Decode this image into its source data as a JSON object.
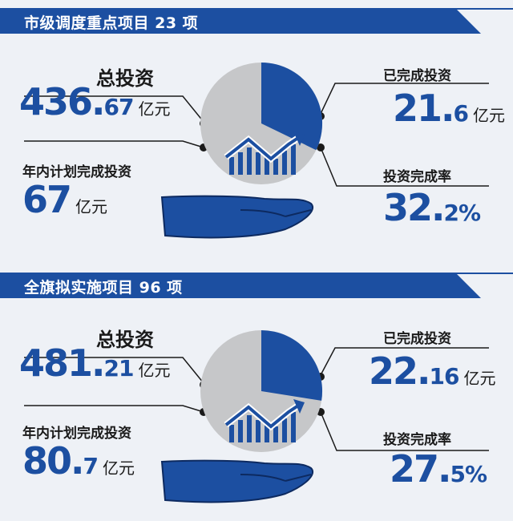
{
  "panels": [
    {
      "header": "市级调度重点项目 23 项",
      "total_label": "总投资",
      "total_int": "436.",
      "total_dec": "67",
      "total_unit": "亿元",
      "annual_label": "年内计划完成投资",
      "annual_int": "67",
      "annual_dec": "",
      "annual_unit": "亿元",
      "done_label": "已完成投资",
      "done_int": "21.",
      "done_dec": "6",
      "done_unit": "亿元",
      "rate_label": "投资完成率",
      "rate_int": "32.",
      "rate_dec": "2%",
      "rate_value": 32.2
    },
    {
      "header": "全旗拟实施项目 96 项",
      "total_label": "总投资",
      "total_int": "481.",
      "total_dec": "21",
      "total_unit": "亿元",
      "annual_label": "年内计划完成投资",
      "annual_int": "80.",
      "annual_dec": "7",
      "annual_unit": "亿元",
      "done_label": "已完成投资",
      "done_int": "22.",
      "done_dec": "16",
      "done_unit": "亿元",
      "rate_label": "投资完成率",
      "rate_int": "27.",
      "rate_dec": "5%",
      "rate_value": 27.5
    }
  ],
  "colors": {
    "blue": "#1c4fa1",
    "gray": "#c6c7c9",
    "dark": "#1a1a1a"
  },
  "icons": [
    "pie-chart-icon",
    "bar-trend-icon",
    "hand-icon"
  ]
}
